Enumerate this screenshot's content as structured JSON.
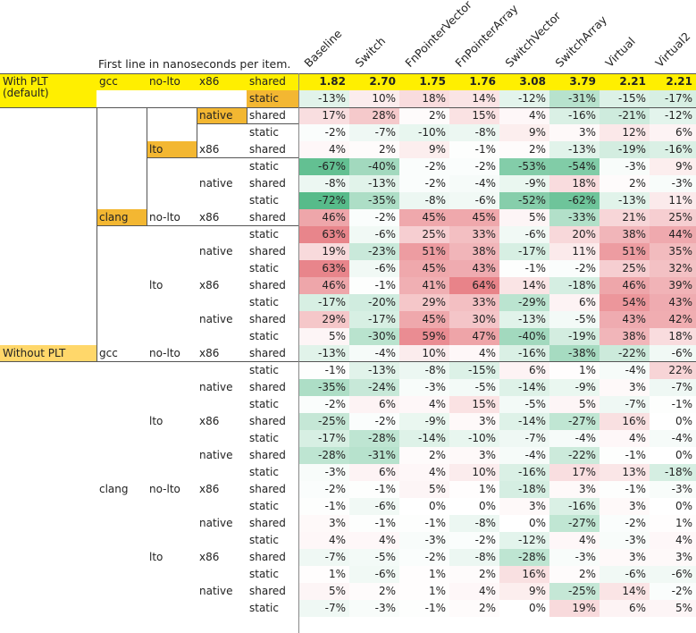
{
  "subtitle": "First line in nanoseconds per item.",
  "columns": [
    "Baseline",
    "Switch",
    "FnPointerVector",
    "FnPointerArray",
    "SwitchVector",
    "SwitchArray",
    "Virtual",
    "Virtual2"
  ],
  "colors": {
    "highlight_yellow": "#ffef00",
    "highlight_orange": "#f3b732",
    "highlight_lightorange": "#ffd76a",
    "positive": "#e5737a",
    "negative": "#57bb8a"
  },
  "rows": [
    {
      "g": "With PLT\n(default)",
      "c": "gcc",
      "l": "no-lto",
      "a": "x86",
      "s": "shared",
      "v": [
        "1.82",
        "2.70",
        "1.75",
        "1.76",
        "3.08",
        "3.79",
        "2.21",
        "2.21"
      ],
      "baseline": true
    },
    {
      "s": "static",
      "v": [
        "-13%",
        "10%",
        "18%",
        "14%",
        "-12%",
        "-31%",
        "-15%",
        "-17%"
      ]
    },
    {
      "a": "native",
      "s": "shared",
      "v": [
        "17%",
        "28%",
        "2%",
        "15%",
        "4%",
        "-16%",
        "-21%",
        "-12%"
      ]
    },
    {
      "s": "static",
      "v": [
        "-2%",
        "-7%",
        "-10%",
        "-8%",
        "9%",
        "3%",
        "12%",
        "6%"
      ]
    },
    {
      "l": "lto",
      "a": "x86",
      "s": "shared",
      "v": [
        "4%",
        "2%",
        "9%",
        "-1%",
        "2%",
        "-13%",
        "-19%",
        "-16%"
      ]
    },
    {
      "s": "static",
      "v": [
        "-67%",
        "-40%",
        "-2%",
        "-2%",
        "-53%",
        "-54%",
        "-3%",
        "9%"
      ]
    },
    {
      "a": "native",
      "s": "shared",
      "v": [
        "-8%",
        "-13%",
        "-2%",
        "-4%",
        "-9%",
        "18%",
        "2%",
        "-3%"
      ]
    },
    {
      "s": "static",
      "v": [
        "-72%",
        "-35%",
        "-8%",
        "-6%",
        "-52%",
        "-62%",
        "-13%",
        "11%"
      ]
    },
    {
      "c": "clang",
      "l": "no-lto",
      "a": "x86",
      "s": "shared",
      "v": [
        "46%",
        "-2%",
        "45%",
        "45%",
        "5%",
        "-33%",
        "21%",
        "25%"
      ]
    },
    {
      "s": "static",
      "v": [
        "63%",
        "-6%",
        "25%",
        "33%",
        "-6%",
        "20%",
        "38%",
        "44%"
      ]
    },
    {
      "a": "native",
      "s": "shared",
      "v": [
        "19%",
        "-23%",
        "51%",
        "38%",
        "-17%",
        "11%",
        "51%",
        "35%"
      ]
    },
    {
      "s": "static",
      "v": [
        "63%",
        "-6%",
        "45%",
        "43%",
        "-1%",
        "-2%",
        "25%",
        "32%"
      ]
    },
    {
      "l": "lto",
      "a": "x86",
      "s": "shared",
      "v": [
        "46%",
        "-1%",
        "41%",
        "64%",
        "14%",
        "-18%",
        "46%",
        "39%"
      ]
    },
    {
      "s": "static",
      "v": [
        "-17%",
        "-20%",
        "29%",
        "33%",
        "-29%",
        "6%",
        "54%",
        "43%"
      ]
    },
    {
      "a": "native",
      "s": "shared",
      "v": [
        "29%",
        "-17%",
        "45%",
        "30%",
        "-13%",
        "-5%",
        "43%",
        "42%"
      ]
    },
    {
      "s": "static",
      "v": [
        "5%",
        "-30%",
        "59%",
        "47%",
        "-40%",
        "-19%",
        "38%",
        "18%"
      ]
    },
    {
      "g": "Without PLT",
      "c": "gcc",
      "l": "no-lto",
      "a": "x86",
      "s": "shared",
      "v": [
        "-13%",
        "-4%",
        "10%",
        "4%",
        "-16%",
        "-38%",
        "-22%",
        "-6%"
      ]
    },
    {
      "s": "static",
      "v": [
        "-1%",
        "-13%",
        "-8%",
        "-15%",
        "6%",
        "1%",
        "-4%",
        "22%"
      ]
    },
    {
      "a": "native",
      "s": "shared",
      "v": [
        "-35%",
        "-24%",
        "-3%",
        "-5%",
        "-14%",
        "-9%",
        "3%",
        "-7%"
      ]
    },
    {
      "s": "static",
      "v": [
        "-2%",
        "6%",
        "4%",
        "15%",
        "-5%",
        "5%",
        "-7%",
        "-1%"
      ]
    },
    {
      "l": "lto",
      "a": "x86",
      "s": "shared",
      "v": [
        "-25%",
        "-2%",
        "-9%",
        "3%",
        "-14%",
        "-27%",
        "16%",
        "0%"
      ]
    },
    {
      "s": "static",
      "v": [
        "-17%",
        "-28%",
        "-14%",
        "-10%",
        "-7%",
        "-4%",
        "4%",
        "-4%"
      ]
    },
    {
      "a": "native",
      "s": "shared",
      "v": [
        "-28%",
        "-31%",
        "2%",
        "3%",
        "-4%",
        "-22%",
        "-1%",
        "0%"
      ]
    },
    {
      "s": "static",
      "v": [
        "-3%",
        "6%",
        "4%",
        "10%",
        "-16%",
        "17%",
        "13%",
        "-18%"
      ]
    },
    {
      "c": "clang",
      "l": "no-lto",
      "a": "x86",
      "s": "shared",
      "v": [
        "-2%",
        "-1%",
        "5%",
        "1%",
        "-18%",
        "3%",
        "-1%",
        "-3%"
      ]
    },
    {
      "s": "static",
      "v": [
        "-1%",
        "-6%",
        "0%",
        "0%",
        "3%",
        "-16%",
        "3%",
        "0%"
      ]
    },
    {
      "a": "native",
      "s": "shared",
      "v": [
        "3%",
        "-1%",
        "-1%",
        "-8%",
        "0%",
        "-27%",
        "-2%",
        "1%"
      ]
    },
    {
      "s": "static",
      "v": [
        "4%",
        "4%",
        "-3%",
        "-2%",
        "-12%",
        "4%",
        "-3%",
        "4%"
      ]
    },
    {
      "l": "lto",
      "a": "x86",
      "s": "shared",
      "v": [
        "-7%",
        "-5%",
        "-2%",
        "-8%",
        "-28%",
        "-3%",
        "3%",
        "3%"
      ]
    },
    {
      "s": "static",
      "v": [
        "1%",
        "-6%",
        "1%",
        "2%",
        "16%",
        "2%",
        "-6%",
        "-6%"
      ]
    },
    {
      "a": "native",
      "s": "shared",
      "v": [
        "5%",
        "2%",
        "1%",
        "4%",
        "9%",
        "-25%",
        "14%",
        "-2%"
      ]
    },
    {
      "s": "static",
      "v": [
        "-7%",
        "-3%",
        "-1%",
        "2%",
        "0%",
        "19%",
        "6%",
        "5%"
      ]
    }
  ]
}
